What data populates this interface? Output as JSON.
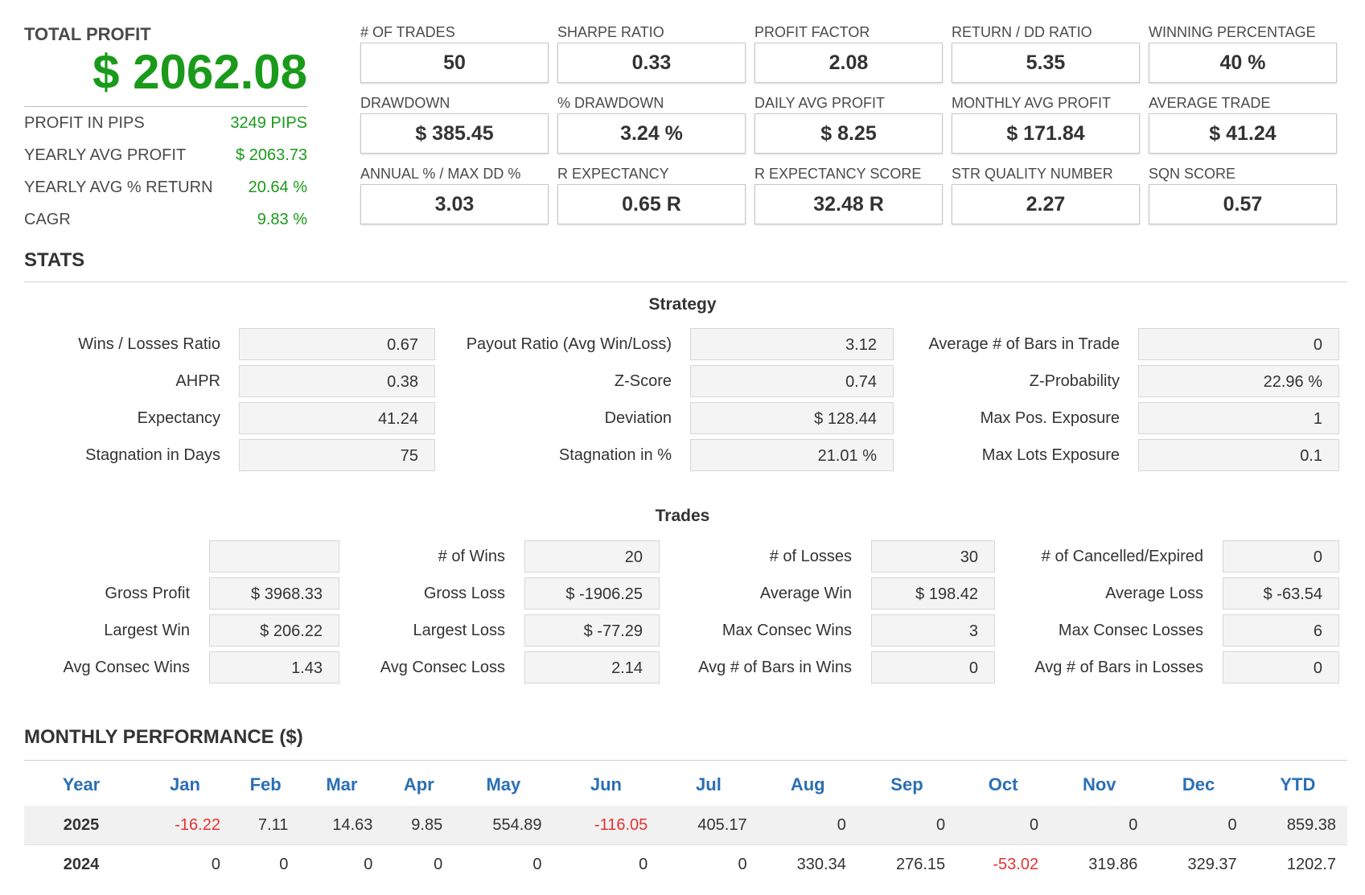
{
  "summary": {
    "total_profit_label": "TOTAL PROFIT",
    "total_profit_value": "$ 2062.08",
    "rows": [
      {
        "label": "PROFIT IN PIPS",
        "value": "3249 PIPS"
      },
      {
        "label": "YEARLY AVG PROFIT",
        "value": "$ 2063.73"
      },
      {
        "label": "YEARLY AVG % RETURN",
        "value": "20.64 %"
      },
      {
        "label": "CAGR",
        "value": "9.83 %"
      }
    ]
  },
  "metrics": [
    {
      "label": "# OF TRADES",
      "value": "50"
    },
    {
      "label": "SHARPE RATIO",
      "value": "0.33"
    },
    {
      "label": "PROFIT FACTOR",
      "value": "2.08"
    },
    {
      "label": "RETURN / DD RATIO",
      "value": "5.35"
    },
    {
      "label": "WINNING PERCENTAGE",
      "value": "40 %"
    },
    {
      "label": "DRAWDOWN",
      "value": "$ 385.45"
    },
    {
      "label": "% DRAWDOWN",
      "value": "3.24 %"
    },
    {
      "label": "DAILY AVG PROFIT",
      "value": "$ 8.25"
    },
    {
      "label": "MONTHLY AVG PROFIT",
      "value": "$ 171.84"
    },
    {
      "label": "AVERAGE TRADE",
      "value": "$ 41.24"
    },
    {
      "label": "ANNUAL % / MAX DD %",
      "value": "3.03"
    },
    {
      "label": "R EXPECTANCY",
      "value": "0.65 R"
    },
    {
      "label": "R EXPECTANCY SCORE",
      "value": "32.48 R"
    },
    {
      "label": "STR QUALITY NUMBER",
      "value": "2.27"
    },
    {
      "label": "SQN SCORE",
      "value": "0.57"
    }
  ],
  "stats_title": "STATS",
  "strategy": {
    "title": "Strategy",
    "rows": [
      [
        {
          "label": "Wins / Losses Ratio",
          "value": "0.67"
        },
        {
          "label": "Payout Ratio (Avg Win/Loss)",
          "value": "3.12"
        },
        {
          "label": "Average # of Bars in Trade",
          "value": "0"
        }
      ],
      [
        {
          "label": "AHPR",
          "value": "0.38"
        },
        {
          "label": "Z-Score",
          "value": "0.74"
        },
        {
          "label": "Z-Probability",
          "value": "22.96 %"
        }
      ],
      [
        {
          "label": "Expectancy",
          "value": "41.24"
        },
        {
          "label": "Deviation",
          "value": "$ 128.44"
        },
        {
          "label": "Max Pos. Exposure",
          "value": "1"
        }
      ],
      [
        {
          "label": "Stagnation in Days",
          "value": "75"
        },
        {
          "label": "Stagnation in %",
          "value": "21.01 %"
        },
        {
          "label": "Max Lots Exposure",
          "value": "0.1"
        }
      ]
    ]
  },
  "trades": {
    "title": "Trades",
    "rows": [
      [
        {
          "label": "",
          "value": ""
        },
        {
          "label": "# of Wins",
          "value": "20"
        },
        {
          "label": "# of Losses",
          "value": "30"
        },
        {
          "label": "# of Cancelled/Expired",
          "value": "0"
        }
      ],
      [
        {
          "label": "Gross Profit",
          "value": "$ 3968.33"
        },
        {
          "label": "Gross Loss",
          "value": "$ -1906.25"
        },
        {
          "label": "Average Win",
          "value": "$ 198.42"
        },
        {
          "label": "Average Loss",
          "value": "$ -63.54"
        }
      ],
      [
        {
          "label": "Largest Win",
          "value": "$ 206.22"
        },
        {
          "label": "Largest Loss",
          "value": "$ -77.29"
        },
        {
          "label": "Max Consec Wins",
          "value": "3"
        },
        {
          "label": "Max Consec Losses",
          "value": "6"
        }
      ],
      [
        {
          "label": "Avg Consec Wins",
          "value": "1.43"
        },
        {
          "label": "Avg Consec Loss",
          "value": "2.14"
        },
        {
          "label": "Avg # of Bars in Wins",
          "value": "0"
        },
        {
          "label": "Avg # of Bars in Losses",
          "value": "0"
        }
      ]
    ]
  },
  "monthly": {
    "title": "MONTHLY PERFORMANCE ($)",
    "headers": [
      "Year",
      "Jan",
      "Feb",
      "Mar",
      "Apr",
      "May",
      "Jun",
      "Jul",
      "Aug",
      "Sep",
      "Oct",
      "Nov",
      "Dec",
      "YTD"
    ],
    "rows": [
      {
        "year": "2025",
        "values": [
          "-16.22",
          "7.11",
          "14.63",
          "9.85",
          "554.89",
          "-116.05",
          "405.17",
          "0",
          "0",
          "0",
          "0",
          "0",
          "859.38"
        ]
      },
      {
        "year": "2024",
        "values": [
          "0",
          "0",
          "0",
          "0",
          "0",
          "0",
          "0",
          "330.34",
          "276.15",
          "-53.02",
          "319.86",
          "329.37",
          "1202.7"
        ]
      }
    ]
  },
  "colors": {
    "positive": "#1a9a1a",
    "negative": "#e43232",
    "header_blue": "#2a6fb5"
  }
}
